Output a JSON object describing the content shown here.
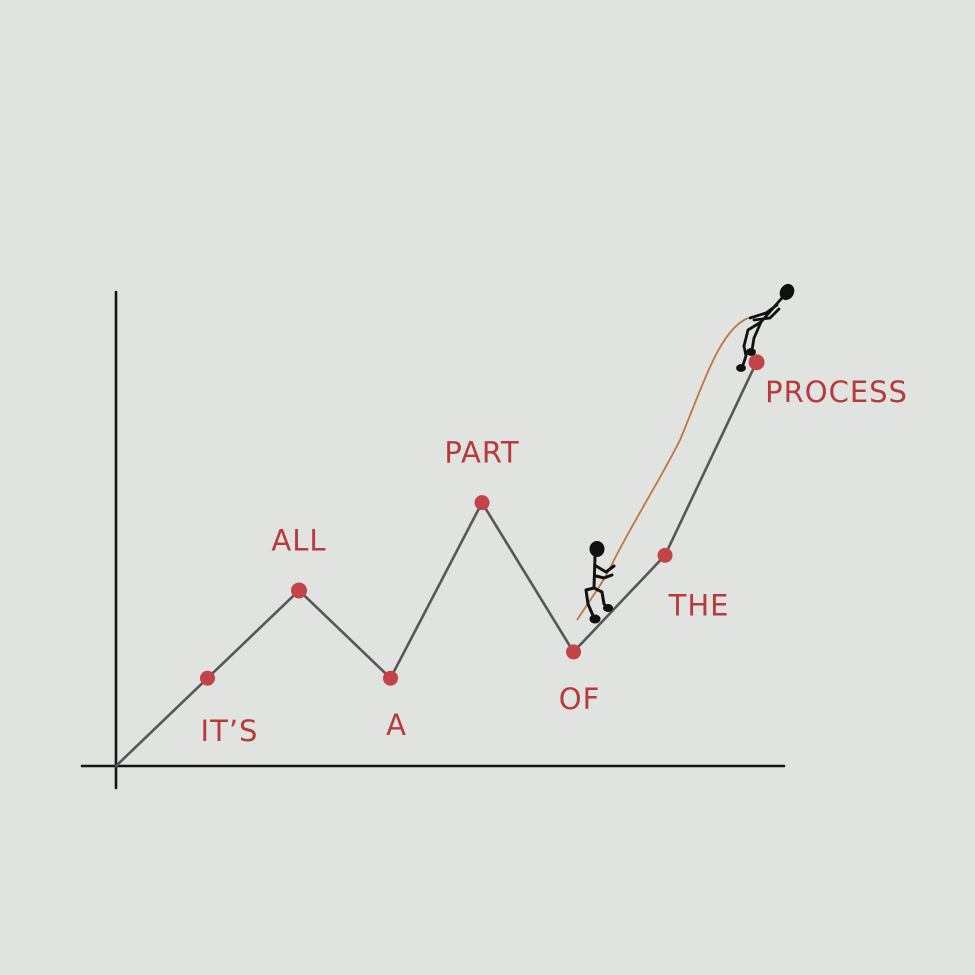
{
  "colors": {
    "background": "#e0e3df",
    "axis": "#141414",
    "line": "#555758",
    "point": "#c24448",
    "label": "#b83a3a",
    "rope": "#c0753f",
    "figure": "#111111"
  },
  "chart_data": {
    "type": "line",
    "title": "",
    "xlabel": "",
    "ylabel": "",
    "grid": false,
    "xlim": [
      0,
      7.3
    ],
    "ylim": [
      0,
      5.4
    ],
    "series": [
      {
        "points": [
          {
            "x": 0,
            "y": 0,
            "label": "",
            "marker": false
          },
          {
            "x": 1,
            "y": 1,
            "label": "IT’S",
            "marker": true
          },
          {
            "x": 2,
            "y": 2,
            "label": "ALL",
            "marker": true
          },
          {
            "x": 3,
            "y": 1,
            "label": "A",
            "marker": true
          },
          {
            "x": 4,
            "y": 3,
            "label": "PART",
            "marker": true
          },
          {
            "x": 5,
            "y": 1.3,
            "label": "OF",
            "marker": true
          },
          {
            "x": 6,
            "y": 2.4,
            "label": "THE",
            "marker": true
          },
          {
            "x": 7,
            "y": 4.6,
            "label": "PROCESS",
            "marker": true
          }
        ]
      }
    ],
    "decorations": [
      "climber-with-rope",
      "climber-on-summit"
    ]
  }
}
